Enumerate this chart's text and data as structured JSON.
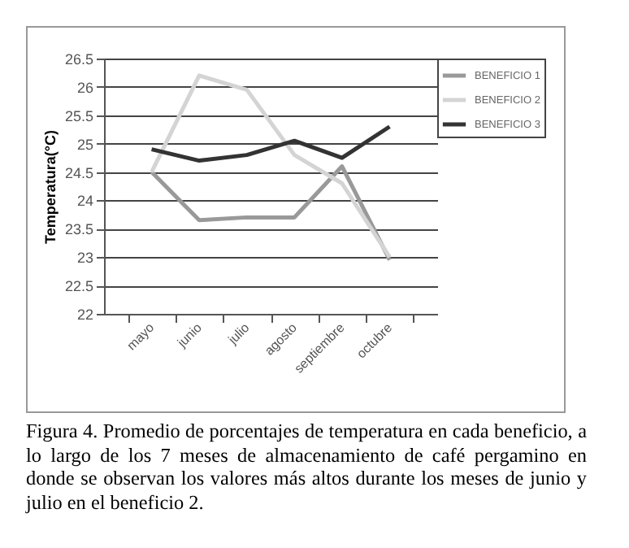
{
  "chart_data": {
    "type": "line",
    "ylabel": "Temperatura(°C)",
    "categories": [
      "mayo",
      "junio",
      "julio",
      "agosto",
      "septiembre",
      "octubre"
    ],
    "series": [
      {
        "name": "BENEFICIO 1",
        "color": "#999999",
        "values": [
          24.5,
          23.65,
          23.7,
          23.7,
          24.6,
          22.95
        ]
      },
      {
        "name": "BENEFICIO 2",
        "color": "#d4d4d4",
        "values": [
          24.5,
          26.2,
          25.95,
          24.8,
          24.3,
          23.0
        ]
      },
      {
        "name": "BENEFICIO 3",
        "color": "#333333",
        "values": [
          24.9,
          24.7,
          24.8,
          25.05,
          24.75,
          25.3
        ]
      }
    ],
    "ylim": [
      22,
      26.5
    ],
    "yticks": [
      22,
      22.5,
      23,
      23.5,
      24,
      24.5,
      25,
      25.5,
      26,
      26.5
    ],
    "grid": "y",
    "legend": "right",
    "marker": "none",
    "line_style": "solid",
    "annotations": [
      "Figura 4. Promedio de porcentajes de temperatura en cada beneficio, a lo largo de los 7 meses de almacenamiento de café pergamino en donde se observan los valores más altos durante los meses de junio y julio en el beneficio 2."
    ]
  }
}
